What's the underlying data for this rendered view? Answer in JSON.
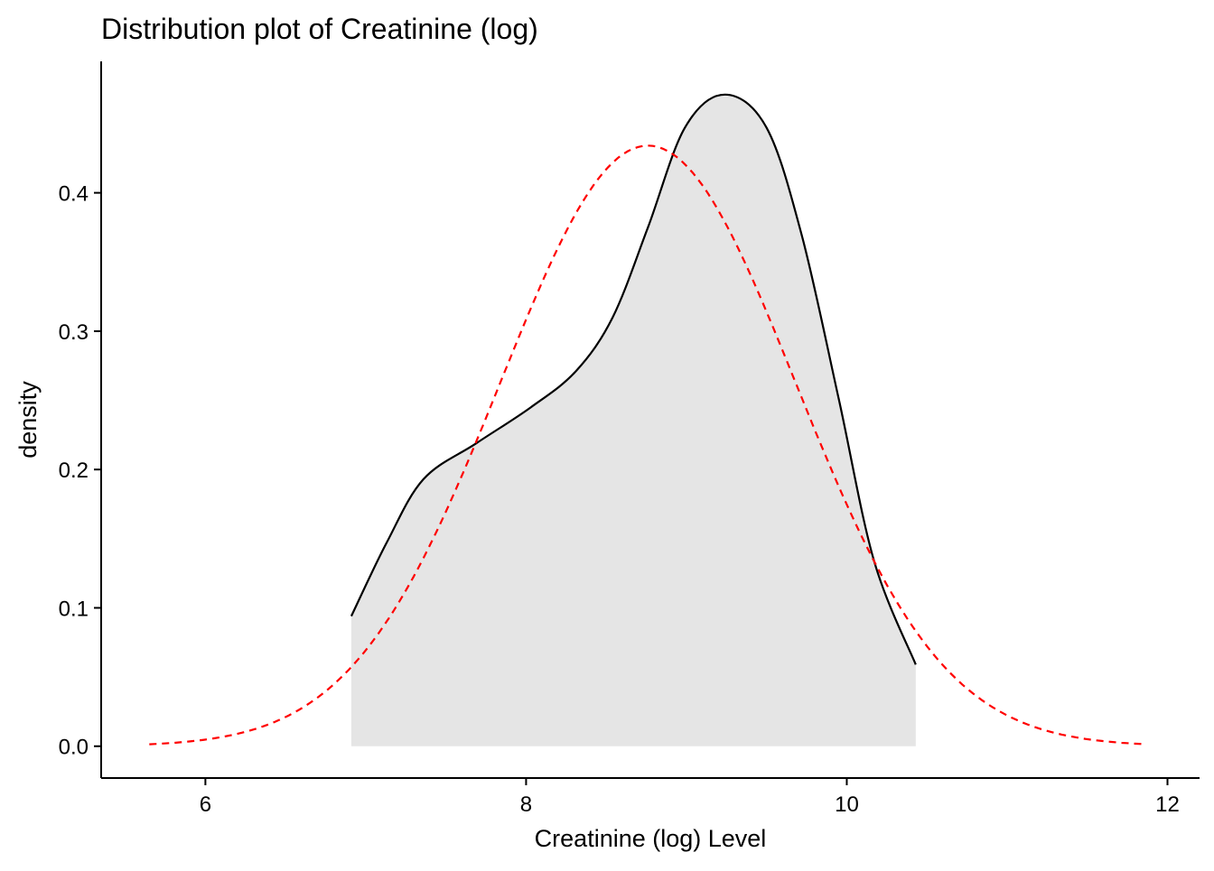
{
  "chart_data": {
    "type": "area",
    "title": "Distribution plot of Creatinine (log)",
    "xlabel": "Creatinine (log) Level",
    "ylabel": "density",
    "xlim": [
      5.35,
      12.2
    ],
    "ylim": [
      -0.023,
      0.495
    ],
    "xticks": [
      6,
      8,
      10,
      12
    ],
    "yticks": [
      0.0,
      0.1,
      0.2,
      0.3,
      0.4
    ],
    "ytick_labels": [
      "0.0",
      "0.1",
      "0.2",
      "0.3",
      "0.4"
    ],
    "grid": false,
    "series": [
      {
        "name": "density",
        "style": "filled area, solid black outline",
        "fill": "#e5e5e5",
        "color": "#000000",
        "x": [
          6.91,
          7.13,
          7.36,
          7.69,
          8.03,
          8.31,
          8.54,
          8.76,
          8.99,
          9.24,
          9.5,
          9.72,
          9.95,
          10.17,
          10.43
        ],
        "y": [
          0.094,
          0.147,
          0.193,
          0.219,
          0.245,
          0.271,
          0.31,
          0.375,
          0.447,
          0.471,
          0.447,
          0.369,
          0.251,
          0.134,
          0.059
        ]
      },
      {
        "name": "normal fit",
        "style": "dashed",
        "color": "#ff0000",
        "mean": 8.76,
        "sd": 0.919,
        "x_range": [
          5.65,
          11.87
        ]
      }
    ]
  }
}
